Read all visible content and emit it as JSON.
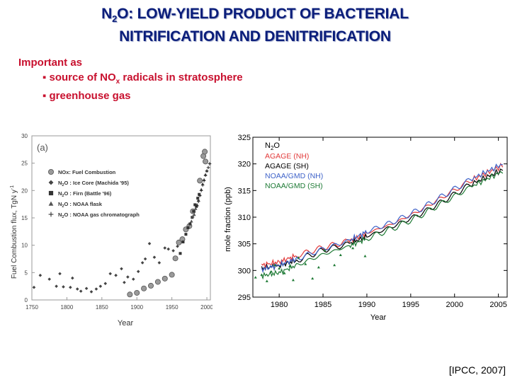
{
  "title": {
    "line1_pre": "N",
    "line1_sub": "2",
    "line1_post": "O: LOW-YIELD PRODUCT OF BACTERIAL",
    "line2": "NITRIFICATION AND DENITRIFICATION",
    "color": "#0a1d7a"
  },
  "intro": {
    "important": "Important as",
    "bullet1_pre": "▪ source of NO",
    "bullet1_sub": "x",
    "bullet1_post": " radicals in stratosphere",
    "bullet2": "▪ greenhouse gas",
    "color": "#c8102e"
  },
  "citation": "[IPCC, 2007]",
  "chart_data": [
    {
      "type": "scatter",
      "panel_label": "(a)",
      "xlabel": "Year",
      "ylabel": "Fuel Combustion flux, TgN y",
      "ylabel_sup": "-1",
      "xlim": [
        1750,
        2005
      ],
      "ylim": [
        0,
        30
      ],
      "xticks": [
        "1750",
        "1800",
        "1850",
        "1900",
        "1950",
        "2000"
      ],
      "yticks": [
        "0",
        "5",
        "10",
        "15",
        "20",
        "25",
        "30"
      ],
      "legend": [
        {
          "marker": "circle",
          "label": "NOx: Fuel Combustion"
        },
        {
          "marker": "diamond",
          "pre": "N",
          "sub": "2",
          "post": "O : Ice Core (Machida '95)"
        },
        {
          "marker": "square",
          "pre": "N",
          "sub": "2",
          "post": "O : Firn (Battle '96)"
        },
        {
          "marker": "triangle",
          "pre": "N",
          "sub": "2",
          "post": "O : NOAA flask"
        },
        {
          "marker": "plus",
          "pre": "N",
          "sub": "2",
          "post": "O : NOAA gas chromatograph"
        }
      ],
      "series": [
        {
          "name": "NOx: Fuel Combustion",
          "marker": "circle",
          "points": [
            [
              1890,
              1.0
            ],
            [
              1900,
              1.3
            ],
            [
              1910,
              2.1
            ],
            [
              1920,
              2.6
            ],
            [
              1930,
              3.3
            ],
            [
              1940,
              3.9
            ],
            [
              1950,
              4.6
            ],
            [
              1955,
              7.6
            ],
            [
              1960,
              10.5
            ],
            [
              1965,
              11.1
            ],
            [
              1970,
              12.9
            ],
            [
              1975,
              13.5
            ],
            [
              1980,
              16.2
            ],
            [
              1990,
              21.8
            ],
            [
              1995,
              26.3
            ],
            [
              1997,
              27.1
            ],
            [
              1998,
              25.3
            ]
          ]
        },
        {
          "name": "Ice Core (Machida '95)",
          "marker": "diamond",
          "points": [
            [
              1753,
              2.3
            ],
            [
              1762,
              4.5
            ],
            [
              1775,
              3.8
            ],
            [
              1785,
              2.5
            ],
            [
              1790,
              4.8
            ],
            [
              1795,
              2.4
            ],
            [
              1805,
              2.3
            ],
            [
              1808,
              4.0
            ],
            [
              1815,
              2.0
            ],
            [
              1820,
              1.6
            ],
            [
              1828,
              2.1
            ],
            [
              1835,
              1.5
            ],
            [
              1842,
              2.0
            ],
            [
              1848,
              2.5
            ],
            [
              1855,
              3.0
            ],
            [
              1862,
              4.8
            ],
            [
              1870,
              4.5
            ],
            [
              1878,
              5.7
            ],
            [
              1882,
              3.2
            ],
            [
              1887,
              4.2
            ],
            [
              1895,
              3.8
            ],
            [
              1902,
              5.2
            ],
            [
              1908,
              6.8
            ],
            [
              1912,
              7.5
            ],
            [
              1918,
              10.3
            ],
            [
              1925,
              7.8
            ],
            [
              1932,
              6.8
            ],
            [
              1940,
              9.5
            ],
            [
              1945,
              9.3
            ],
            [
              1952,
              9.0
            ],
            [
              1958,
              9.8
            ]
          ]
        },
        {
          "name": "Firn (Battle '96)",
          "marker": "square",
          "points": [
            [
              1962,
              8.5
            ],
            [
              1966,
              10.6
            ],
            [
              1970,
              12.0
            ],
            [
              1973,
              13.2
            ],
            [
              1976,
              13.9
            ],
            [
              1979,
              15.1
            ],
            [
              1981,
              16.2
            ],
            [
              1983,
              17.4
            ],
            [
              1985,
              17.1
            ],
            [
              1987,
              18.6
            ],
            [
              1989,
              19.3
            ]
          ]
        },
        {
          "name": "NOAA flask",
          "marker": "triangle",
          "points": [
            [
              1978,
              14.4
            ],
            [
              1980,
              15.3
            ],
            [
              1982,
              15.6
            ],
            [
              1984,
              16.7
            ],
            [
              1986,
              17.4
            ],
            [
              1988,
              18.3
            ],
            [
              1990,
              19.2
            ],
            [
              1992,
              20.2
            ],
            [
              1994,
              21.2
            ],
            [
              1996,
              22.0
            ],
            [
              1998,
              22.9
            ],
            [
              2000,
              23.6
            ]
          ]
        },
        {
          "name": "NOAA gas chromatograph",
          "marker": "plus",
          "points": [
            [
              1986,
              17.2
            ],
            [
              1988,
              18.0
            ],
            [
              1990,
              19.1
            ],
            [
              1992,
              20.0
            ],
            [
              1994,
              21.0
            ],
            [
              1996,
              21.8
            ],
            [
              1998,
              22.8
            ],
            [
              2000,
              23.6
            ],
            [
              2002,
              24.2
            ],
            [
              2004,
              24.9
            ]
          ]
        }
      ]
    },
    {
      "type": "line",
      "panel_title_pre": "N",
      "panel_title_sub": "2",
      "panel_title_post": "O",
      "xlabel": "Year",
      "ylabel": "mole fraction (ppb)",
      "xlim": [
        1977,
        2006
      ],
      "ylim": [
        295,
        325
      ],
      "xticks": [
        "1980",
        "1985",
        "1990",
        "1995",
        "2000",
        "2005"
      ],
      "yticks": [
        "295",
        "300",
        "305",
        "310",
        "315",
        "320",
        "325"
      ],
      "series": [
        {
          "name": "AGAGE (NH)",
          "color": "#e23a3a",
          "x": [
            1978,
            1980,
            1982,
            1985,
            1988,
            1990,
            1993,
            1996,
            1999,
            2002,
            2005.5
          ],
          "y": [
            301.0,
            301.6,
            302.8,
            304.3,
            305.5,
            307.0,
            308.8,
            311.2,
            314.1,
            317.0,
            319.7
          ]
        },
        {
          "name": "AGAGE (SH)",
          "color": "#000000",
          "x": [
            1978,
            1980,
            1982,
            1985,
            1988,
            1990,
            1993,
            1996,
            1999,
            2002,
            2005.5
          ],
          "y": [
            300.4,
            300.9,
            301.9,
            303.8,
            305.0,
            306.4,
            308.3,
            310.5,
            313.3,
            316.3,
            318.9
          ]
        },
        {
          "name": "NOAA/GMD (NH)",
          "color": "#3f63c9",
          "x": [
            1978,
            1980,
            1982,
            1985,
            1988,
            1990,
            1993,
            1996,
            1999,
            2002,
            2005.5
          ],
          "y": [
            300.2,
            301.0,
            302.2,
            304.0,
            305.6,
            307.3,
            309.1,
            311.4,
            314.3,
            317.2,
            320.0
          ]
        },
        {
          "name": "NOAA/GMD (SH)",
          "color": "#1e7a35",
          "x": [
            1978,
            1980,
            1982,
            1985,
            1988,
            1990,
            1993,
            1996,
            1999,
            2002,
            2005.5
          ],
          "y": [
            299.0,
            299.6,
            301.0,
            303.0,
            304.6,
            306.0,
            307.9,
            310.2,
            313.0,
            315.8,
            318.6
          ]
        }
      ],
      "noaa_flask_early": {
        "x": [
          1977.3,
          1978.0,
          1978.6,
          1979.1,
          1979.5,
          1980.0,
          1980.6,
          1981.2,
          1981.6,
          1982.2,
          1983.0,
          1983.8,
          1984.5,
          1985.2,
          1986.3,
          1987.0,
          1988.4,
          1989.8
        ],
        "y": [
          298.7,
          299.2,
          298.0,
          299.8,
          301.0,
          300.4,
          299.5,
          300.8,
          298.2,
          302.4,
          301.2,
          298.5,
          300.6,
          303.8,
          301.0,
          302.9,
          304.2,
          302.7
        ]
      }
    }
  ]
}
